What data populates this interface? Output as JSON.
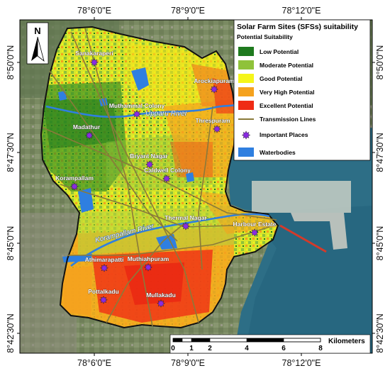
{
  "map": {
    "title": "Solar Farm Sites (SFSs) suitability",
    "subtitle": "Potential Suitability",
    "north_label": "N",
    "legend": [
      {
        "label": "Low Potential",
        "color": "#1e7a1e",
        "kind": "patch"
      },
      {
        "label": "Moderate Potential",
        "color": "#8fc23a",
        "kind": "patch"
      },
      {
        "label": "Good Potential",
        "color": "#f5f51a",
        "kind": "patch"
      },
      {
        "label": "Very High Potential",
        "color": "#f5a21e",
        "kind": "patch"
      },
      {
        "label": "Excellent Potential",
        "color": "#ef2b15",
        "kind": "patch"
      },
      {
        "label": "Transmission Lines",
        "color": "#8a7a3a",
        "kind": "line"
      },
      {
        "label": "Important Places",
        "color": "#8a2be2",
        "kind": "star"
      },
      {
        "label": "Waterbodies",
        "color": "#2f7fe0",
        "kind": "patch"
      }
    ],
    "lon_labels": [
      "78°6'0\"E",
      "78°9'0\"E",
      "78°12'0\"E"
    ],
    "lat_labels": [
      "8°50'0\"N",
      "8°47'30\"N",
      "8°45'0\"N",
      "8°42'30\"N"
    ],
    "places": [
      "Sanakaraperi",
      "Arockiapuram",
      "Muthammal Colony",
      "Madathur",
      "Threspuram",
      "Bryant Nagar",
      "Caldwell Colony",
      "Korampallam",
      "Thermal Nagar",
      "Harbour Estate",
      "Athimarapatti",
      "Muthiahpuram",
      "Pottalkadu",
      "Mullakadu"
    ],
    "rivers": [
      "Upparu River",
      "Korampallam River"
    ],
    "scale_bar": {
      "unit": "Kilometers",
      "ticks": [
        "0",
        "1",
        "2",
        "4",
        "6",
        "8"
      ]
    }
  }
}
